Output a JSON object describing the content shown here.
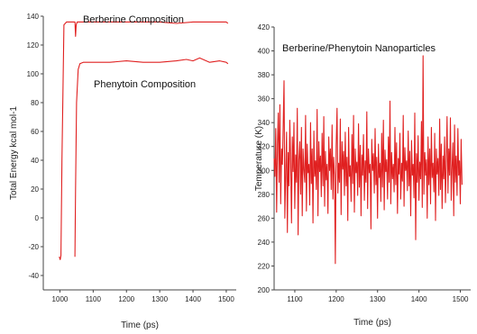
{
  "chart_data": [
    {
      "type": "line",
      "xlabel": "Time (ps)",
      "ylabel": "Total Energy kcal mol-1",
      "xlim": [
        950,
        1530
      ],
      "ylim": [
        -50,
        140
      ],
      "x_ticks": [
        "1000",
        "1100",
        "1200",
        "1300",
        "1400",
        "1500"
      ],
      "y_ticks": [
        "-40",
        "-20",
        "0",
        "20",
        "40",
        "60",
        "80",
        "100",
        "120",
        "140"
      ],
      "grid": false,
      "annotations": [
        "Berberine Composition",
        "Phenytoin Composition"
      ],
      "series": [
        {
          "name": "Berberine Composition",
          "color": "#e02020",
          "x": [
            998,
            1001,
            1003,
            1006,
            1012,
            1020,
            1035,
            1045,
            1047,
            1049,
            1052,
            1070,
            1100,
            1150,
            1200,
            1250,
            1300,
            1350,
            1400,
            1450,
            1500,
            1505
          ],
          "y": [
            -27,
            -29,
            -26,
            40,
            134,
            136,
            136,
            136,
            126,
            134,
            136,
            136,
            136,
            136,
            136,
            136,
            136,
            135,
            136,
            136,
            136,
            135
          ]
        },
        {
          "name": "Phenytoin Composition",
          "color": "#e02020",
          "x": [
            1045,
            1047,
            1050,
            1055,
            1060,
            1070,
            1080,
            1100,
            1150,
            1200,
            1250,
            1300,
            1350,
            1380,
            1400,
            1420,
            1450,
            1480,
            1500,
            1505
          ],
          "y": [
            -27,
            20,
            80,
            103,
            107,
            108,
            108,
            108,
            108,
            109,
            108,
            108,
            109,
            110,
            109,
            111,
            108,
            109,
            108,
            107
          ]
        }
      ]
    },
    {
      "type": "line",
      "title": "Berberine/Phenytoin Nanoparticles",
      "xlabel": "Time (ps)",
      "ylabel": "Temperature (K)",
      "xlim": [
        1050,
        1525
      ],
      "ylim": [
        200,
        420
      ],
      "x_ticks": [
        "1100",
        "1200",
        "1300",
        "1400",
        "1500"
      ],
      "y_ticks": [
        "200",
        "220",
        "240",
        "260",
        "280",
        "300",
        "320",
        "340",
        "360",
        "380",
        "400",
        "420"
      ],
      "grid": false,
      "series": [
        {
          "name": "Berberine/Phenytoin Nanoparticles",
          "color": "#e02020",
          "x_start": 1050,
          "x_step": 2,
          "y": [
            310,
            295,
            335,
            265,
            322,
            348,
            290,
            355,
            272,
            318,
            305,
            338,
            375,
            260,
            300,
            332,
            248,
            315,
            287,
            342,
            305,
            256,
            328,
            299,
            340,
            268,
            313,
            290,
            352,
            246,
            309,
            324,
            280,
            336,
            262,
            318,
            301,
            290,
            346,
            266,
            322,
            298,
            305,
            271,
            340,
            289,
            318,
            256,
            333,
            295,
            308,
            284,
            351,
            262,
            324,
            299,
            312,
            278,
            331,
            287,
            345,
            270,
            316,
            292,
            305,
            264,
            328,
            300,
            318,
            284,
            338,
            276,
            311,
            296,
            222,
            320,
            352,
            281,
            306,
            290,
            343,
            263,
            324,
            301,
            316,
            279,
            332,
            287,
            311,
            258,
            336,
            295,
            304,
            274,
            330,
            289,
            346,
            265,
            318,
            298,
            307,
            279,
            339,
            286,
            321,
            262,
            313,
            296,
            330,
            275,
            308,
            290,
            349,
            268,
            318,
            298,
            305,
            251,
            326,
            300,
            314,
            281,
            335,
            288,
            311,
            260,
            322,
            294,
            306,
            274,
            331,
            286,
            342,
            267,
            317,
            299,
            309,
            276,
            328,
            290,
            358,
            272,
            315,
            293,
            305,
            282,
            336,
            288,
            323,
            264,
            310,
            297,
            331,
            276,
            306,
            291,
            346,
            270,
            319,
            300,
            308,
            283,
            333,
            287,
            316,
            262,
            325,
            296,
            305,
            277,
            348,
            242,
            314,
            290,
            329,
            275,
            307,
            293,
            341,
            269,
            396,
            280,
            315,
            296,
            309,
            260,
            328,
            288,
            318,
            272,
            336,
            294,
            306,
            282,
            331,
            258,
            318,
            297,
            310,
            279,
            343,
            284,
            322,
            268,
            312,
            293,
            328,
            273,
            305,
            345,
            281,
            318,
            296,
            344,
            275,
            301,
            323,
            262,
            338,
            290,
            312,
            279,
            335,
            296,
            308,
            272,
            326,
            288
          ]
        }
      ]
    }
  ]
}
